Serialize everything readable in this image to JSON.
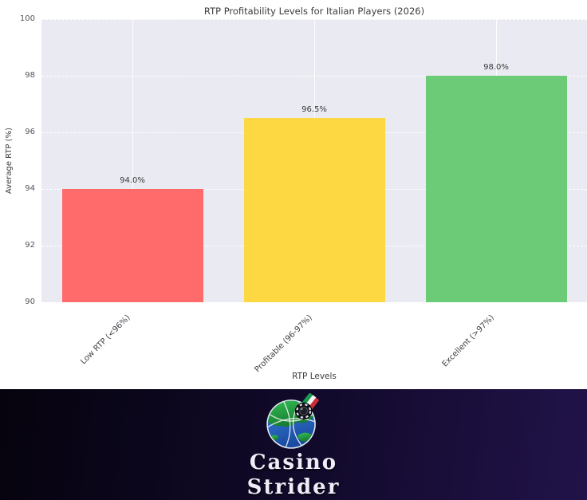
{
  "chart_data": {
    "type": "bar",
    "title": "RTP Profitability Levels for Italian Players (2026)",
    "xlabel": "RTP Levels",
    "ylabel": "Average RTP (%)",
    "ylim": [
      90,
      100
    ],
    "yticks": [
      90,
      92,
      94,
      96,
      98,
      100
    ],
    "categories": [
      "Low RTP (<96%)",
      "Profitable (96-97%)",
      "Excellent (>97%)"
    ],
    "values": [
      94.0,
      96.5,
      98.0
    ],
    "value_labels": [
      "94.0%",
      "96.5%",
      "98.0%"
    ],
    "bar_colors": [
      "#ff6b6b",
      "#fed843",
      "#6bcb77"
    ],
    "plot_bg": "#eaeaf2",
    "grid_color": "#ffffff",
    "grid_style": "dashed-horizontal solid-vertical",
    "legend": "none"
  },
  "footer": {
    "brand_line1": "Casino",
    "brand_line2": "Strider",
    "logo_icon": "globe-casino-chip-italian-flag-icon",
    "bg_left": "#06030e",
    "bg_right": "#211349",
    "text_color": "#eeecf6"
  }
}
